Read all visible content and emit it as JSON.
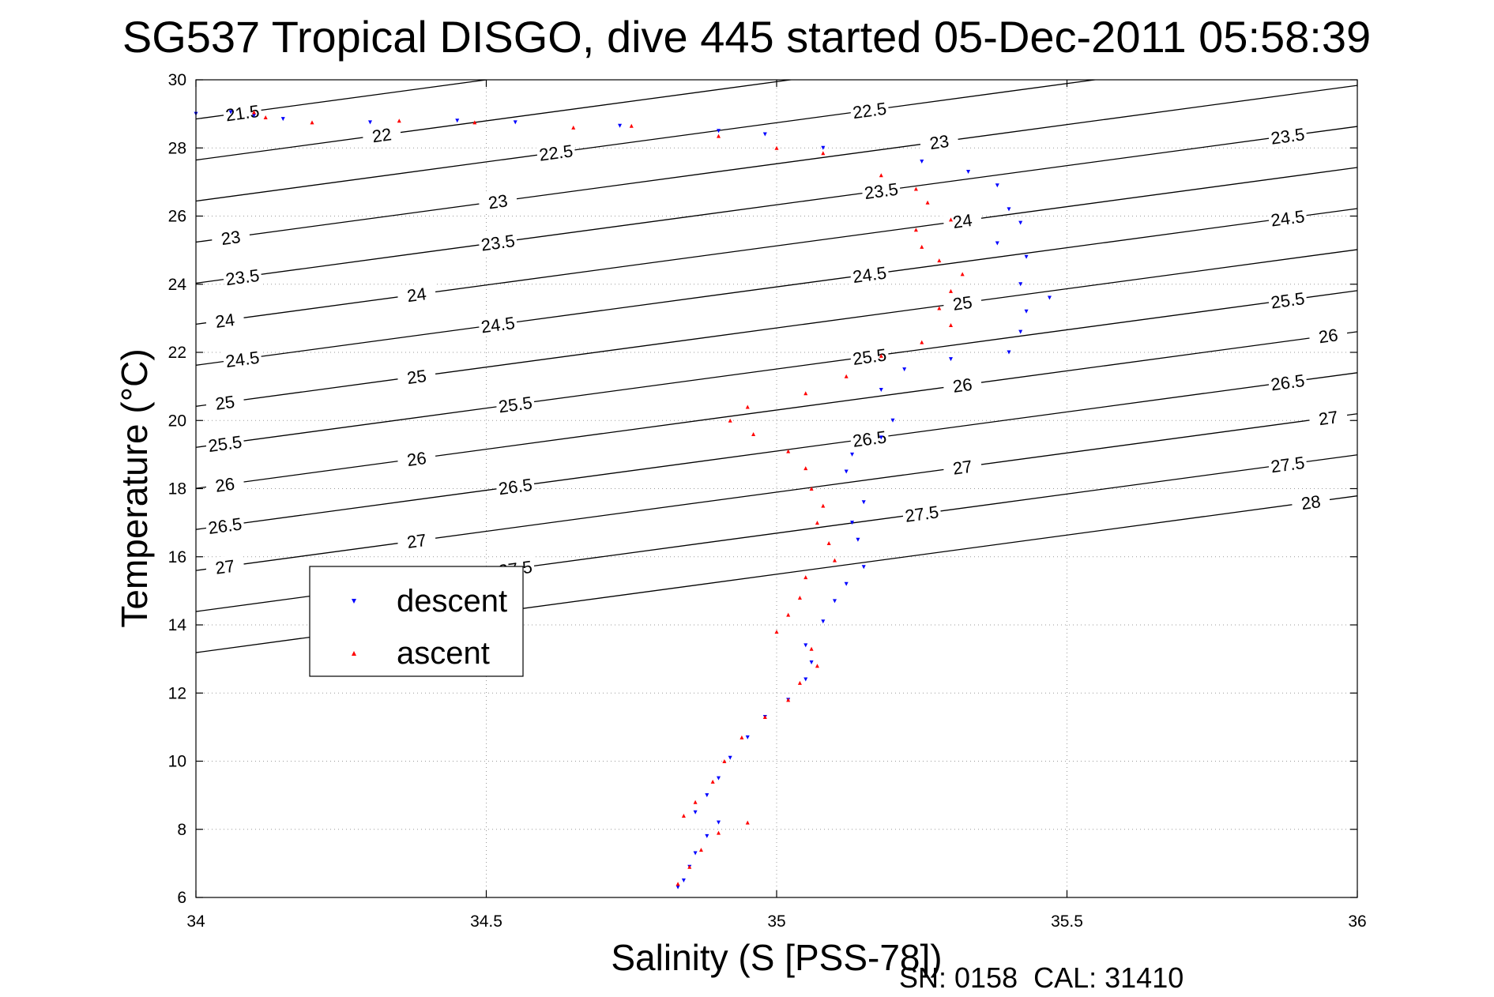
{
  "chart_data": {
    "type": "scatter",
    "title": "SG537 Tropical DISGO, dive 445 started 05-Dec-2011 05:58:39",
    "xlabel": "Salinity (S [PSS-78])",
    "ylabel": "Temperature (°C)",
    "footer": "SN: 0158  CAL: 31410",
    "xlim": [
      34,
      36
    ],
    "ylim": [
      6,
      30
    ],
    "grid": true,
    "legend_position": "center-left",
    "x_ticks": [
      34,
      34.5,
      35,
      35.5,
      36
    ],
    "x_tick_labels": [
      "34",
      "34.5",
      "35",
      "35.5",
      "36"
    ],
    "y_ticks": [
      6,
      8,
      10,
      12,
      14,
      16,
      18,
      20,
      22,
      24,
      26,
      28,
      30
    ],
    "y_tick_labels": [
      "6",
      "8",
      "10",
      "12",
      "14",
      "16",
      "18",
      "20",
      "22",
      "24",
      "26",
      "28",
      "30"
    ],
    "density_contours": [
      {
        "label": "21.5",
        "color": "#000000"
      },
      {
        "label": "22",
        "color": "#000000"
      },
      {
        "label": "22.5",
        "color": "#000000"
      },
      {
        "label": "23",
        "color": "#000000"
      },
      {
        "label": "23.5",
        "color": "#000000"
      },
      {
        "label": "24",
        "color": "#000000"
      },
      {
        "label": "24.5",
        "color": "#000000"
      },
      {
        "label": "25",
        "color": "#000000"
      },
      {
        "label": "25.5",
        "color": "#000000"
      },
      {
        "label": "26",
        "color": "#000000"
      },
      {
        "label": "26.5",
        "color": "#000000"
      },
      {
        "label": "27",
        "color": "#000000"
      },
      {
        "label": "27.5",
        "color": "#000000"
      },
      {
        "label": "28",
        "color": "#000000"
      }
    ],
    "series": [
      {
        "name": "descent",
        "marker": "triangle-down",
        "color": "#0000ff",
        "points": [
          [
            34.0,
            29.0
          ],
          [
            34.06,
            29.05
          ],
          [
            34.1,
            28.95
          ],
          [
            34.15,
            28.85
          ],
          [
            34.3,
            28.75
          ],
          [
            34.45,
            28.8
          ],
          [
            34.55,
            28.75
          ],
          [
            34.73,
            28.65
          ],
          [
            34.9,
            28.5
          ],
          [
            34.98,
            28.4
          ],
          [
            35.08,
            28.0
          ],
          [
            35.25,
            27.6
          ],
          [
            35.33,
            27.3
          ],
          [
            35.38,
            26.9
          ],
          [
            35.4,
            26.2
          ],
          [
            35.42,
            25.8
          ],
          [
            35.38,
            25.2
          ],
          [
            35.43,
            24.8
          ],
          [
            35.42,
            24.0
          ],
          [
            35.47,
            23.6
          ],
          [
            35.43,
            23.2
          ],
          [
            35.42,
            22.6
          ],
          [
            35.4,
            22.0
          ],
          [
            35.3,
            21.8
          ],
          [
            35.22,
            21.5
          ],
          [
            35.18,
            20.9
          ],
          [
            35.2,
            20.0
          ],
          [
            35.18,
            19.5
          ],
          [
            35.13,
            19.0
          ],
          [
            35.12,
            18.5
          ],
          [
            35.15,
            17.6
          ],
          [
            35.13,
            17.0
          ],
          [
            35.14,
            16.5
          ],
          [
            35.15,
            15.7
          ],
          [
            35.12,
            15.2
          ],
          [
            35.1,
            14.7
          ],
          [
            35.08,
            14.1
          ],
          [
            35.05,
            13.4
          ],
          [
            35.06,
            12.9
          ],
          [
            35.05,
            12.4
          ],
          [
            35.02,
            11.8
          ],
          [
            34.98,
            11.3
          ],
          [
            34.95,
            10.7
          ],
          [
            34.92,
            10.1
          ],
          [
            34.9,
            9.5
          ],
          [
            34.88,
            9.0
          ],
          [
            34.86,
            8.5
          ],
          [
            34.9,
            8.2
          ],
          [
            34.88,
            7.8
          ],
          [
            34.86,
            7.3
          ],
          [
            34.85,
            6.9
          ],
          [
            34.84,
            6.5
          ],
          [
            34.83,
            6.3
          ]
        ]
      },
      {
        "name": "ascent",
        "marker": "triangle-up",
        "color": "#ff0000",
        "points": [
          [
            34.1,
            29.05
          ],
          [
            34.12,
            28.9
          ],
          [
            34.2,
            28.75
          ],
          [
            34.35,
            28.8
          ],
          [
            34.48,
            28.75
          ],
          [
            34.65,
            28.6
          ],
          [
            34.75,
            28.65
          ],
          [
            34.9,
            28.35
          ],
          [
            35.0,
            28.0
          ],
          [
            35.08,
            27.85
          ],
          [
            35.18,
            27.2
          ],
          [
            35.24,
            26.8
          ],
          [
            35.26,
            26.4
          ],
          [
            35.3,
            25.9
          ],
          [
            35.24,
            25.6
          ],
          [
            35.25,
            25.1
          ],
          [
            35.28,
            24.7
          ],
          [
            35.32,
            24.3
          ],
          [
            35.3,
            23.8
          ],
          [
            35.28,
            23.3
          ],
          [
            35.3,
            22.8
          ],
          [
            35.25,
            22.3
          ],
          [
            35.18,
            21.9
          ],
          [
            35.12,
            21.3
          ],
          [
            35.05,
            20.8
          ],
          [
            34.95,
            20.4
          ],
          [
            34.92,
            20.0
          ],
          [
            34.96,
            19.6
          ],
          [
            35.02,
            19.1
          ],
          [
            35.05,
            18.6
          ],
          [
            35.06,
            18.0
          ],
          [
            35.08,
            17.5
          ],
          [
            35.07,
            17.0
          ],
          [
            35.09,
            16.4
          ],
          [
            35.1,
            15.9
          ],
          [
            35.05,
            15.4
          ],
          [
            35.04,
            14.8
          ],
          [
            35.02,
            14.3
          ],
          [
            35.0,
            13.8
          ],
          [
            35.06,
            13.3
          ],
          [
            35.07,
            12.8
          ],
          [
            35.04,
            12.3
          ],
          [
            35.02,
            11.8
          ],
          [
            34.98,
            11.3
          ],
          [
            34.94,
            10.7
          ],
          [
            34.91,
            10.0
          ],
          [
            34.89,
            9.4
          ],
          [
            34.86,
            8.8
          ],
          [
            34.84,
            8.4
          ],
          [
            34.95,
            8.2
          ],
          [
            34.9,
            7.9
          ],
          [
            34.87,
            7.4
          ],
          [
            34.85,
            6.9
          ],
          [
            34.83,
            6.4
          ]
        ]
      }
    ]
  }
}
